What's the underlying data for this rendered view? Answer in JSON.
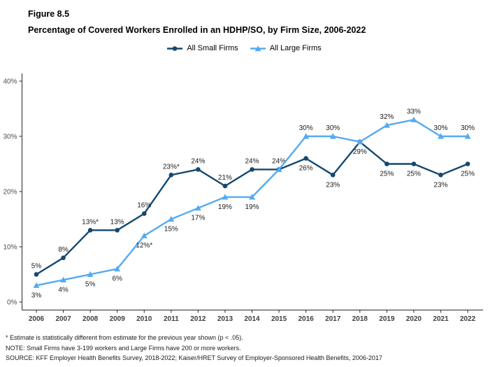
{
  "figure": {
    "label": "Figure 8.5",
    "title": "Percentage of Covered Workers Enrolled in an HDHP/SO, by Firm Size, 2006-2022"
  },
  "legend": [
    {
      "label": "All Small Firms",
      "color": "#16486F",
      "marker": "circle"
    },
    {
      "label": "All Large Firms",
      "color": "#55AAF2",
      "marker": "triangle"
    }
  ],
  "footnotes": [
    "* Estimate is statistically different from estimate for the previous year shown (p < .05).",
    "NOTE: Small Firms have 3-199 workers and Large Firms have 200 or more workers.",
    "SOURCE: KFF Employer Health Benefits Survey, 2018-2022; Kaiser/HRET Survey of Employer-Sponsored Health Benefits, 2006-2017"
  ],
  "chart_data": {
    "type": "line",
    "title": "Percentage of Covered Workers Enrolled in an HDHP/SO, by Firm Size, 2006-2022",
    "xlabel": "",
    "ylabel": "",
    "ylim": [
      0,
      40
    ],
    "grid": false,
    "legend_position": "top-center",
    "x": [
      2006,
      2007,
      2008,
      2009,
      2010,
      2011,
      2012,
      2013,
      2014,
      2015,
      2016,
      2017,
      2018,
      2019,
      2020,
      2021,
      2022
    ],
    "yticks": [
      {
        "value": 0,
        "label": "0%"
      },
      {
        "value": 10,
        "label": "10%"
      },
      {
        "value": 20,
        "label": "20%"
      },
      {
        "value": 30,
        "label": "30%"
      },
      {
        "value": 40,
        "label": "40%"
      }
    ],
    "series": [
      {
        "name": "All Small Firms",
        "color": "#16486F",
        "marker": "circle",
        "values": [
          5,
          8,
          13,
          13,
          16,
          23,
          24,
          21,
          24,
          24,
          26,
          23,
          29,
          25,
          25,
          23,
          25
        ],
        "labels": [
          "5%",
          "8%",
          "13%*",
          "13%",
          "16%",
          "23%*",
          "24%",
          "21%",
          "24%",
          "24%",
          "26%",
          "23%",
          "29%",
          "25%",
          "25%",
          "23%",
          "25%"
        ],
        "label_pos": [
          "above",
          "above",
          "above",
          "above",
          "above",
          "above",
          "above",
          "above",
          "above",
          "above",
          "below",
          "below",
          "below",
          "below",
          "below",
          "below",
          "below"
        ]
      },
      {
        "name": "All Large Firms",
        "color": "#55AAF2",
        "marker": "triangle",
        "values": [
          3,
          4,
          5,
          6,
          12,
          15,
          17,
          19,
          19,
          24,
          30,
          30,
          29,
          32,
          33,
          30,
          30
        ],
        "labels": [
          "3%",
          "4%",
          "5%",
          "6%",
          "12%*",
          "15%",
          "17%",
          "19%",
          "19%",
          null,
          "30%",
          "30%",
          null,
          "32%",
          "33%",
          "30%",
          "30%"
        ],
        "label_pos": [
          "below",
          "below",
          "below",
          "below",
          "below",
          "below",
          "below",
          "below",
          "below",
          null,
          "above",
          "above",
          null,
          "above",
          "above",
          "above",
          "above"
        ]
      }
    ]
  }
}
